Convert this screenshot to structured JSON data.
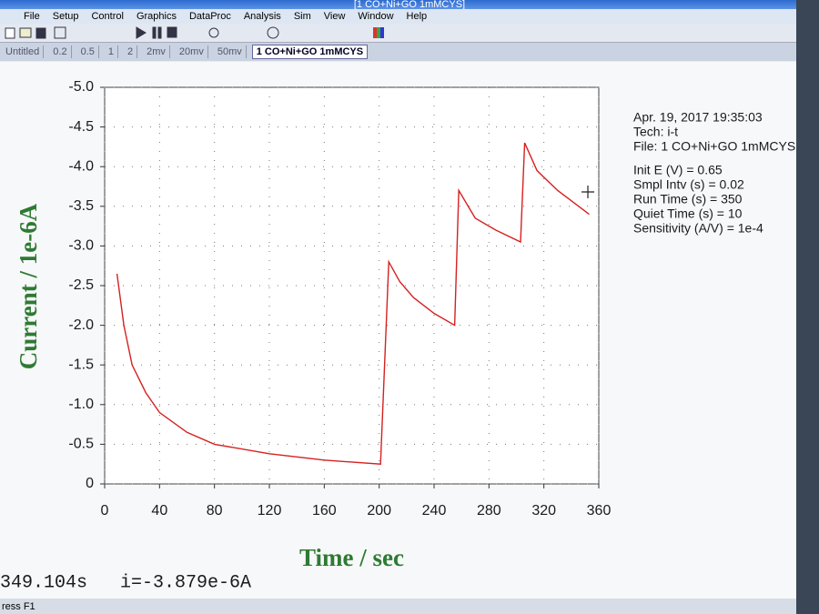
{
  "window": {
    "title": "[1 CO+Ni+GO 1mMCYS]",
    "menu": [
      "File",
      "Setup",
      "Control",
      "Graphics",
      "DataProc",
      "Analysis",
      "Sim",
      "View",
      "Window",
      "Help"
    ],
    "tabs": [
      "Untitled",
      "0.2",
      "0.5",
      "1",
      "2",
      "2mv",
      "20mv",
      "50mv",
      "1 CO+Ni+GO 1mMCYS"
    ]
  },
  "info": [
    "Apr. 19, 2017   19:35:03",
    "Tech: i-t",
    "File: 1 CO+Ni+GO 1mMCYS",
    "Init E (V) = 0.65",
    "Smpl Intv (s) = 0.02",
    "Run Time (s) = 350",
    "Quiet Time (s) = 10",
    "Sensitivity (A/V) = 1e-4"
  ],
  "status": {
    "time": "349.104s",
    "current": "i=-3.879e-6A",
    "hint": "ress F1"
  },
  "chart_data": {
    "type": "line",
    "x_label": "Time / sec",
    "y_label": "Current / 1e-6A",
    "x": [
      9,
      14,
      20,
      30,
      40,
      60,
      80,
      120,
      160,
      201,
      207,
      215,
      225,
      240,
      255,
      258,
      270,
      285,
      303,
      306,
      315,
      330,
      353
    ],
    "series": [
      {
        "name": "i-t",
        "color": "#d62020",
        "values": [
          -2.65,
          -2.0,
          -1.5,
          -1.15,
          -0.9,
          -0.65,
          -0.5,
          -0.38,
          -0.3,
          -0.25,
          -2.8,
          -2.55,
          -2.35,
          -2.15,
          -2.0,
          -3.7,
          -3.35,
          -3.2,
          -3.05,
          -4.3,
          -3.95,
          -3.7,
          -3.4
        ]
      }
    ],
    "xlim": [
      0,
      360
    ],
    "xticks": [
      0,
      40,
      80,
      120,
      160,
      200,
      240,
      280,
      320,
      360
    ],
    "ylim": [
      0,
      -5
    ],
    "yticks": [
      0,
      -0.5,
      {
        "value": -1,
        "label": "-1.0"
      },
      -1.5,
      {
        "value": -2,
        "label": "-2.0"
      },
      -2.5,
      {
        "value": -3,
        "label": "-3.0"
      },
      -3.5,
      {
        "value": -4,
        "label": "-4.0"
      },
      -4.5,
      {
        "value": -5,
        "label": "-5.0"
      }
    ],
    "grid": true
  }
}
